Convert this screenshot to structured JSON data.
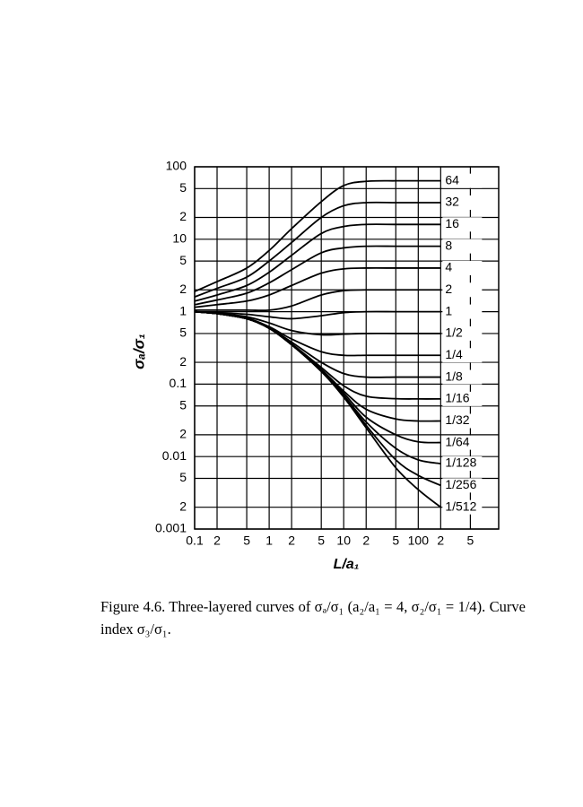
{
  "chart_data": {
    "type": "line",
    "xlabel": "L/a₁",
    "ylabel": "σₐ/σ₁",
    "caption": "Figure 4.6. Three-layered curves of σₐ/σ₁ (a₂/a₁ = 4, σ₂/σ₁ = 1/4). Curve index σ₃/σ₁.",
    "xscale": "log",
    "yscale": "log",
    "grid": true,
    "color": "#000000",
    "xlim": [
      0.1,
      1200
    ],
    "ylim": [
      0.001,
      100
    ],
    "xticks": [
      0.1,
      {
        "value": 0.2,
        "label": "2"
      },
      {
        "value": 0.5,
        "label": "5"
      },
      1,
      {
        "value": 2,
        "label": "2"
      },
      {
        "value": 5,
        "label": "5"
      },
      10,
      {
        "value": 20,
        "label": "2"
      },
      {
        "value": 50,
        "label": "5"
      },
      100,
      {
        "value": 200,
        "label": "2"
      },
      {
        "value": 500,
        "label": "5"
      }
    ],
    "yticks": [
      100,
      {
        "value": 50,
        "label": "5"
      },
      {
        "value": 20,
        "label": "2"
      },
      10,
      {
        "value": 5,
        "label": "5"
      },
      {
        "value": 2,
        "label": "2"
      },
      1,
      {
        "value": 0.5,
        "label": "5"
      },
      {
        "value": 0.2,
        "label": "2"
      },
      0.1,
      {
        "value": 0.05,
        "label": "5"
      },
      {
        "value": 0.02,
        "label": "2"
      },
      0.01,
      {
        "value": 0.005,
        "label": "5"
      },
      {
        "value": 0.002,
        "label": "2"
      },
      0.001
    ],
    "x": [
      0.1,
      0.2,
      0.5,
      1,
      2,
      5,
      10,
      20,
      50,
      100,
      200
    ],
    "series": [
      {
        "name": "64",
        "values": [
          1.9,
          2.6,
          4,
          7,
          14,
          33,
          55,
          63,
          64,
          64,
          64
        ]
      },
      {
        "name": "32",
        "values": [
          1.6,
          2.1,
          3,
          5,
          9,
          20,
          29,
          32,
          32,
          32,
          32
        ]
      },
      {
        "name": "16",
        "values": [
          1.4,
          1.7,
          2.3,
          3.5,
          6,
          12,
          15,
          16,
          16,
          16,
          16
        ]
      },
      {
        "name": "8",
        "values": [
          1.25,
          1.45,
          1.8,
          2.5,
          3.8,
          6.5,
          7.6,
          8,
          8,
          8,
          8
        ]
      },
      {
        "name": "4",
        "values": [
          1.15,
          1.25,
          1.4,
          1.7,
          2.3,
          3.4,
          3.9,
          4,
          4,
          4,
          4
        ]
      },
      {
        "name": "2",
        "values": [
          1.05,
          1.05,
          1.05,
          1.05,
          1.2,
          1.7,
          1.95,
          2,
          2,
          2,
          2
        ]
      },
      {
        "name": "1",
        "values": [
          1,
          0.97,
          0.92,
          0.85,
          0.8,
          0.88,
          0.97,
          1,
          1,
          1,
          1
        ]
      },
      {
        "name": "1/2",
        "values": [
          1,
          0.95,
          0.85,
          0.7,
          0.55,
          0.48,
          0.49,
          0.5,
          0.5,
          0.5,
          0.5
        ]
      },
      {
        "name": "1/4",
        "values": [
          1,
          0.94,
          0.82,
          0.62,
          0.42,
          0.28,
          0.25,
          0.25,
          0.25,
          0.25,
          0.25
        ]
      },
      {
        "name": "1/8",
        "values": [
          1,
          0.94,
          0.8,
          0.6,
          0.38,
          0.2,
          0.14,
          0.125,
          0.125,
          0.125,
          0.125
        ]
      },
      {
        "name": "1/16",
        "values": [
          1,
          0.94,
          0.8,
          0.59,
          0.36,
          0.17,
          0.095,
          0.068,
          0.063,
          0.0625,
          0.0625
        ]
      },
      {
        "name": "1/32",
        "values": [
          1,
          0.94,
          0.8,
          0.59,
          0.35,
          0.16,
          0.08,
          0.045,
          0.033,
          0.031,
          0.031
        ]
      },
      {
        "name": "1/64",
        "values": [
          1,
          0.94,
          0.8,
          0.59,
          0.35,
          0.155,
          0.075,
          0.035,
          0.02,
          0.016,
          0.0156
        ]
      },
      {
        "name": "1/128",
        "values": [
          1,
          0.94,
          0.8,
          0.59,
          0.35,
          0.15,
          0.07,
          0.03,
          0.013,
          0.009,
          0.008
        ]
      },
      {
        "name": "1/256",
        "values": [
          1,
          0.94,
          0.8,
          0.59,
          0.35,
          0.15,
          0.068,
          0.027,
          0.009,
          0.0055,
          0.004
        ]
      },
      {
        "name": "1/512",
        "values": [
          1,
          0.94,
          0.8,
          0.59,
          0.35,
          0.15,
          0.066,
          0.025,
          0.007,
          0.0035,
          0.002
        ]
      }
    ]
  }
}
